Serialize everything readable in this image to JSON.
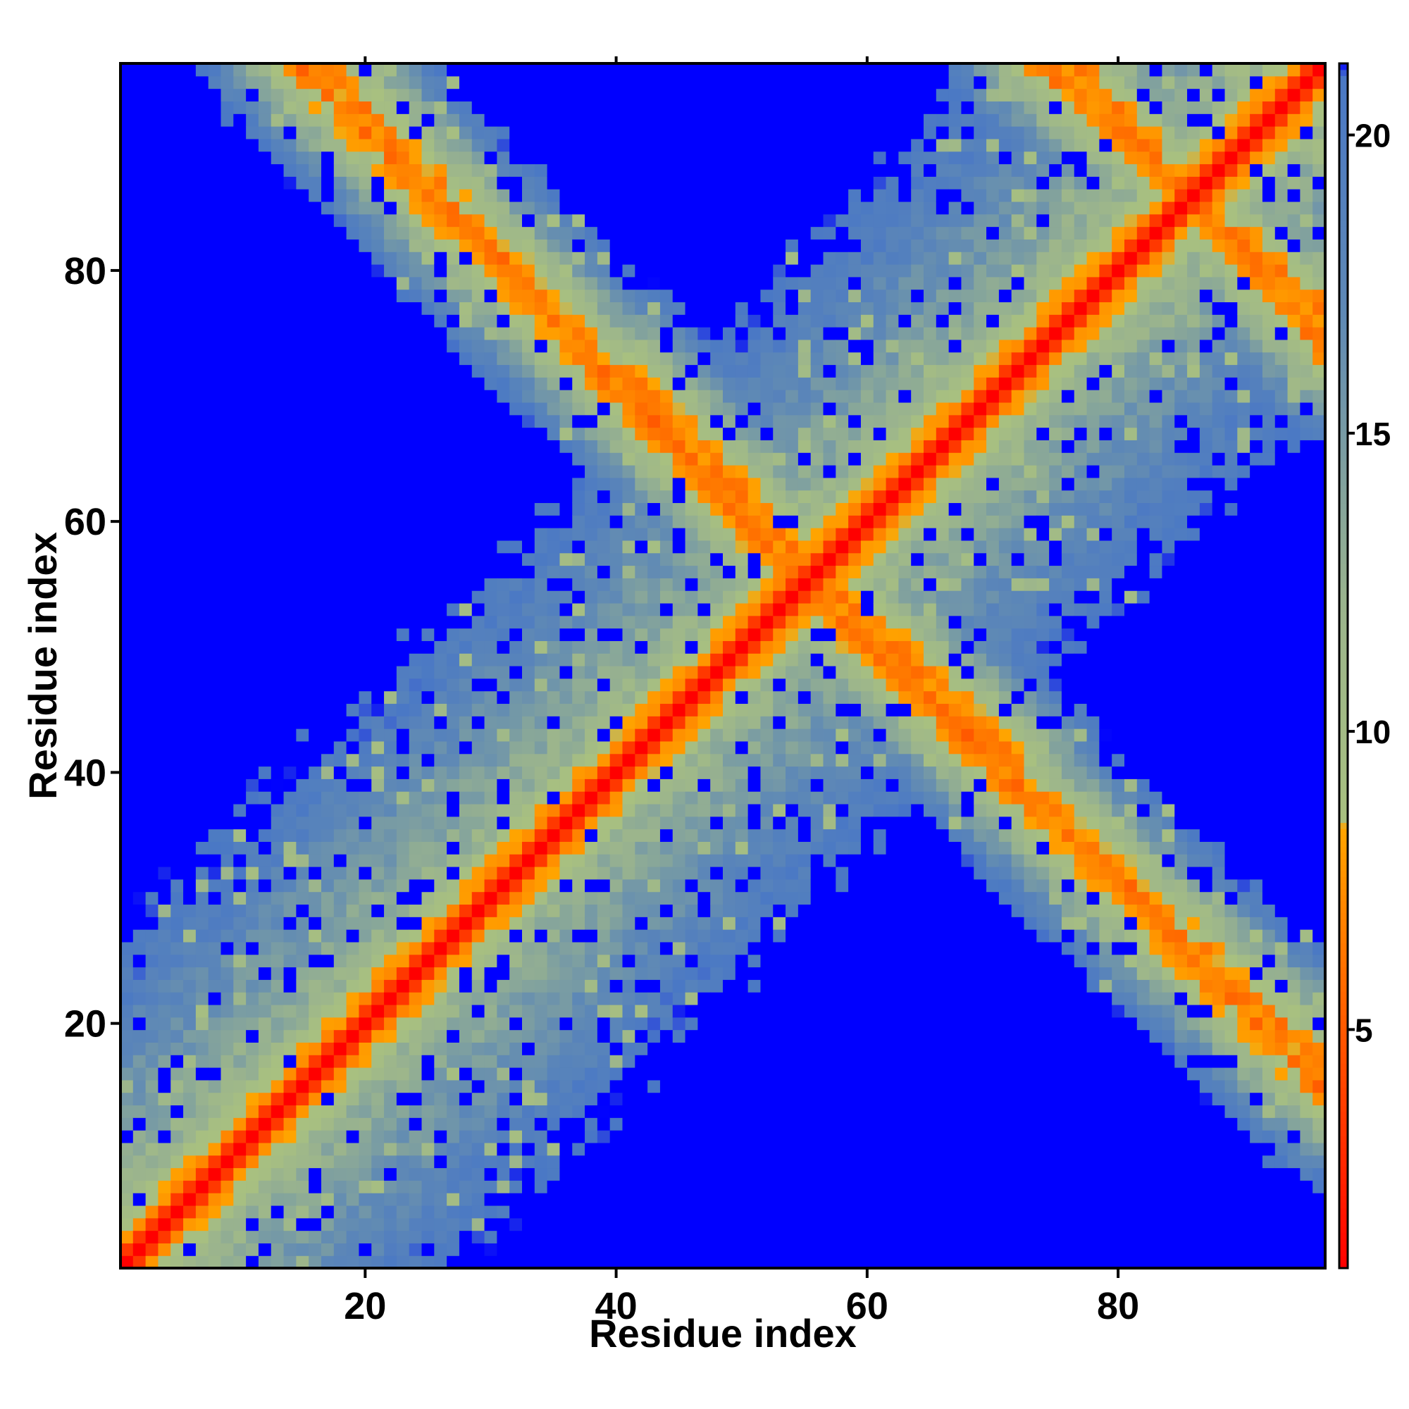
{
  "chart_data": {
    "type": "heatmap",
    "title": "",
    "xlabel": "Residue index",
    "ylabel": "Residue index",
    "n_residues": 96,
    "xlim": [
      0.5,
      96.5
    ],
    "ylim": [
      0.5,
      96.5
    ],
    "x_ticks": [
      20,
      40,
      60,
      80
    ],
    "y_ticks": [
      20,
      40,
      60,
      80
    ],
    "colorbar": {
      "ticks": [
        5,
        10,
        15,
        20
      ],
      "range": [
        1,
        21.2
      ],
      "stops": [
        {
          "value": 1.0,
          "color": "#ff0000"
        },
        {
          "value": 8.4,
          "color": "#ffa500"
        },
        {
          "value": 8.5,
          "color": "#a8c080"
        },
        {
          "value": 12.0,
          "color": "#9cb58c"
        },
        {
          "value": 17.0,
          "color": "#5f89b5"
        },
        {
          "value": 21.0,
          "color": "#4a78c5"
        },
        {
          "value": 21.2,
          "color": "#0000ff"
        }
      ],
      "overflow_color": "#0000ff"
    },
    "grid": false,
    "description_of_values": "distance matrix, symmetric; diagonal ~1, near-diagonal <8 (helix), off-diagonal contact bands forming X pattern",
    "contact_segments": [
      {
        "from": [
          1,
          1
        ],
        "to": [
          96,
          96
        ],
        "note": "main diagonal"
      },
      {
        "from": [
          14,
          97
        ],
        "to": [
          56,
          54
        ],
        "note": "antidiagonal contacts upper-left"
      },
      {
        "from": [
          41,
          72
        ],
        "to": [
          54,
          58
        ],
        "note": "antidiagonal contacts upper-middle"
      },
      {
        "from": [
          56,
          54
        ],
        "to": [
          96,
          17
        ],
        "note": "antidiagonal contacts lower-right"
      },
      {
        "from": [
          58,
          52
        ],
        "to": [
          68,
          43
        ],
        "note": "antidiagonal contacts middle-right"
      },
      {
        "from": [
          73,
          97
        ],
        "to": [
          96,
          77
        ],
        "note": "antidiagonal contacts top-right"
      }
    ]
  }
}
